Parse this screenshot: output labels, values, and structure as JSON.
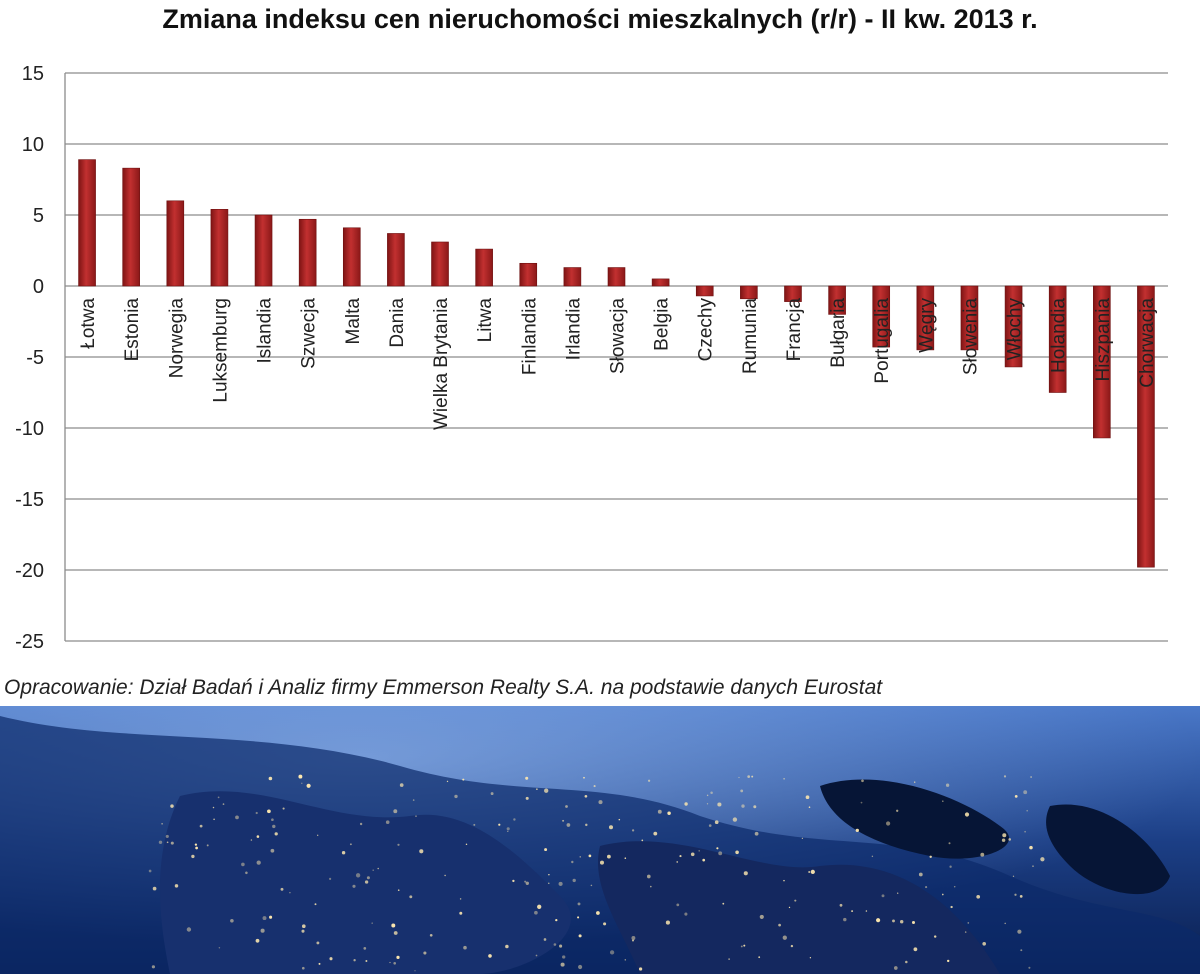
{
  "chart_data": {
    "type": "bar",
    "title": "Zmiana indeksu cen nieruchomości mieszkalnych (r/r) - II kw. 2013 r.",
    "xlabel": "",
    "ylabel": "",
    "ylim": [
      -25,
      15
    ],
    "yticks": [
      15,
      10,
      5,
      0,
      -5,
      -10,
      -15,
      -20,
      -25
    ],
    "grid": true,
    "legend": "none",
    "categories": [
      "Łotwa",
      "Estonia",
      "Norwegia",
      "Luksemburg",
      "Islandia",
      "Szwecja",
      "Malta",
      "Dania",
      "Wielka Brytania",
      "Litwa",
      "Finlandia",
      "Irlandia",
      "Słowacja",
      "Belgia",
      "Czechy",
      "Rumunia",
      "Francja",
      "Bułgaria",
      "Portugalia",
      "Węgry",
      "Słowenia",
      "Włochy",
      "Holandia",
      "Hiszpania",
      "Chorwacja"
    ],
    "values": [
      8.9,
      8.3,
      6.0,
      5.4,
      5.0,
      4.7,
      4.1,
      3.7,
      3.1,
      2.6,
      1.6,
      1.3,
      1.3,
      0.5,
      -0.7,
      -0.9,
      -1.1,
      -2.0,
      -4.3,
      -4.5,
      -4.5,
      -5.7,
      -7.5,
      -10.7,
      -19.8
    ],
    "bar_color": "#b22222"
  },
  "caption": "Opracowanie: Dział Badań i Analiz firmy Emmerson Realty S.A. na podstawie danych Eurostat",
  "image": {
    "subject": "earth-at-night-europe"
  }
}
